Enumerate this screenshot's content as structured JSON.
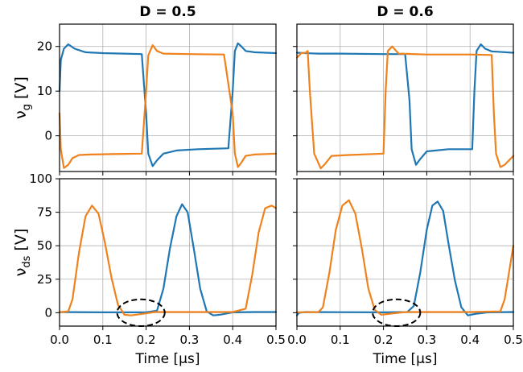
{
  "chart_data": [
    {
      "type": "line",
      "panel": "gate-left",
      "title": "D = 0.5",
      "ylabel": "ν",
      "ylabel_sub": "g",
      "ylabel_unit": " [V]",
      "xlabel": "",
      "xlim": [
        0,
        0.5
      ],
      "ylim": [
        -8,
        25
      ],
      "yticks": [
        0,
        10,
        20
      ],
      "xticks": [
        0.0,
        0.1,
        0.2,
        0.3,
        0.4,
        0.5
      ],
      "grid": true,
      "series": [
        {
          "color": "#1f77b4",
          "x": [
            0,
            0.003,
            0.01,
            0.02,
            0.035,
            0.06,
            0.1,
            0.15,
            0.19,
            0.2,
            0.205,
            0.215,
            0.225,
            0.24,
            0.27,
            0.32,
            0.39,
            0.4,
            0.405,
            0.412,
            0.42,
            0.43,
            0.45,
            0.5
          ],
          "y": [
            10,
            17,
            19.5,
            20.5,
            19.5,
            18.7,
            18.5,
            18.4,
            18.3,
            5,
            -4,
            -6.8,
            -5.5,
            -4,
            -3.3,
            -3.0,
            -2.8,
            10,
            19,
            20.7,
            20,
            19,
            18.7,
            18.5
          ]
        },
        {
          "color": "#f0821e",
          "x": [
            0,
            0.003,
            0.01,
            0.02,
            0.03,
            0.045,
            0.07,
            0.12,
            0.19,
            0.2,
            0.205,
            0.215,
            0.225,
            0.24,
            0.3,
            0.38,
            0.4,
            0.405,
            0.412,
            0.42,
            0.43,
            0.45,
            0.5
          ],
          "y": [
            5,
            -3,
            -7.2,
            -6.5,
            -5,
            -4.3,
            -4.2,
            -4.1,
            -4.0,
            10,
            18,
            20.3,
            19,
            18.4,
            18.3,
            18.2,
            5,
            -4,
            -7,
            -6,
            -4.5,
            -4.2,
            -4.0
          ]
        }
      ]
    },
    {
      "type": "line",
      "panel": "gate-right",
      "title": "D = 0.6",
      "xlabel": "",
      "xlim": [
        0,
        0.5
      ],
      "ylim": [
        -8,
        25
      ],
      "yticks": [
        0,
        10,
        20
      ],
      "xticks": [
        0.0,
        0.1,
        0.2,
        0.3,
        0.4,
        0.5
      ],
      "grid": true,
      "series": [
        {
          "color": "#1f77b4",
          "x": [
            0,
            0.02,
            0.05,
            0.1,
            0.2,
            0.25,
            0.26,
            0.265,
            0.275,
            0.285,
            0.3,
            0.35,
            0.405,
            0.41,
            0.415,
            0.425,
            0.435,
            0.45,
            0.5
          ],
          "y": [
            18.6,
            18.5,
            18.4,
            18.4,
            18.3,
            18.3,
            8,
            -3,
            -6.5,
            -5.2,
            -3.5,
            -3.0,
            -3.0,
            10,
            19,
            20.5,
            19.5,
            18.9,
            18.6
          ]
        },
        {
          "color": "#f0821e",
          "x": [
            0,
            0.01,
            0.02,
            0.025,
            0.03,
            0.04,
            0.055,
            0.065,
            0.08,
            0.12,
            0.2,
            0.205,
            0.21,
            0.22,
            0.235,
            0.3,
            0.4,
            0.45,
            0.455,
            0.46,
            0.47,
            0.48,
            0.49,
            0.5
          ],
          "y": [
            17.5,
            18.5,
            18.6,
            19,
            10,
            -4,
            -7.3,
            -6.3,
            -4.5,
            -4.3,
            -4.0,
            10,
            19,
            20,
            18.4,
            18.2,
            18.2,
            18.1,
            5,
            -4,
            -7,
            -6.5,
            -5.5,
            -4.5
          ]
        }
      ]
    },
    {
      "type": "line",
      "panel": "drain-left",
      "title": "",
      "ylabel": "ν",
      "ylabel_sub": "ds",
      "ylabel_unit": " [V]",
      "xlabel": "Time [μs]",
      "xlim": [
        0,
        0.5
      ],
      "ylim": [
        -10,
        100
      ],
      "yticks": [
        0,
        25,
        50,
        75,
        100
      ],
      "xticks": [
        0.0,
        0.1,
        0.2,
        0.3,
        0.4,
        0.5
      ],
      "xticklabels": [
        "0.0",
        "0.1",
        "0.2",
        "0.3",
        "0.4",
        "0.5"
      ],
      "grid": true,
      "annotation": {
        "shape": "dashed-ellipse",
        "cx": 0.188,
        "cy": 0,
        "rx": 0.055,
        "ry": 10
      },
      "series": [
        {
          "color": "#1f77b4",
          "x": [
            0,
            0.1,
            0.2,
            0.225,
            0.24,
            0.255,
            0.27,
            0.283,
            0.296,
            0.31,
            0.325,
            0.34,
            0.355,
            0.37,
            0.4,
            0.45,
            0.5
          ],
          "y": [
            0.5,
            0.3,
            0.3,
            1.5,
            18,
            48,
            72,
            81,
            75,
            48,
            18,
            1,
            -2,
            -1.5,
            0.3,
            0.5,
            0.5
          ]
        },
        {
          "color": "#f0821e",
          "x": [
            0,
            0.02,
            0.03,
            0.045,
            0.06,
            0.075,
            0.09,
            0.105,
            0.12,
            0.135,
            0.15,
            0.165,
            0.2,
            0.22,
            0.3,
            0.4,
            0.43,
            0.445,
            0.46,
            0.475,
            0.49,
            0.5
          ],
          "y": [
            0.3,
            1,
            10,
            45,
            72,
            80,
            74,
            52,
            26,
            6,
            -1.5,
            -2,
            -0.5,
            0.5,
            0.5,
            0.5,
            3,
            28,
            60,
            78,
            80,
            78
          ]
        }
      ]
    },
    {
      "type": "line",
      "panel": "drain-right",
      "title": "",
      "xlabel": "Time [μs]",
      "xlim": [
        0,
        0.5
      ],
      "ylim": [
        -10,
        100
      ],
      "yticks": [
        0,
        25,
        50,
        75,
        100
      ],
      "xticks": [
        0.0,
        0.1,
        0.2,
        0.3,
        0.4,
        0.5
      ],
      "xticklabels": [
        "0.0",
        "0.1",
        "0.2",
        "0.3",
        "0.4",
        "0.5"
      ],
      "grid": true,
      "annotation": {
        "shape": "dashed-ellipse",
        "cx": 0.23,
        "cy": 0,
        "rx": 0.055,
        "ry": 10
      },
      "series": [
        {
          "color": "#1f77b4",
          "x": [
            0,
            0.005,
            0.02,
            0.1,
            0.2,
            0.255,
            0.27,
            0.285,
            0.3,
            0.313,
            0.325,
            0.338,
            0.35,
            0.365,
            0.38,
            0.395,
            0.41,
            0.44,
            0.5
          ],
          "y": [
            -2,
            0,
            0.5,
            0.4,
            0.3,
            0.5,
            5,
            30,
            62,
            80,
            83,
            76,
            52,
            24,
            4,
            -2,
            -1,
            0.3,
            0.5
          ]
        },
        {
          "color": "#f0821e",
          "x": [
            0,
            0.05,
            0.06,
            0.075,
            0.09,
            0.105,
            0.12,
            0.135,
            0.15,
            0.165,
            0.18,
            0.195,
            0.25,
            0.3,
            0.4,
            0.47,
            0.48,
            0.49,
            0.5
          ],
          "y": [
            0.3,
            0.5,
            4,
            30,
            62,
            80,
            84,
            74,
            48,
            18,
            2,
            -1.5,
            0.5,
            0.5,
            0.5,
            1,
            10,
            30,
            50
          ]
        }
      ]
    }
  ]
}
